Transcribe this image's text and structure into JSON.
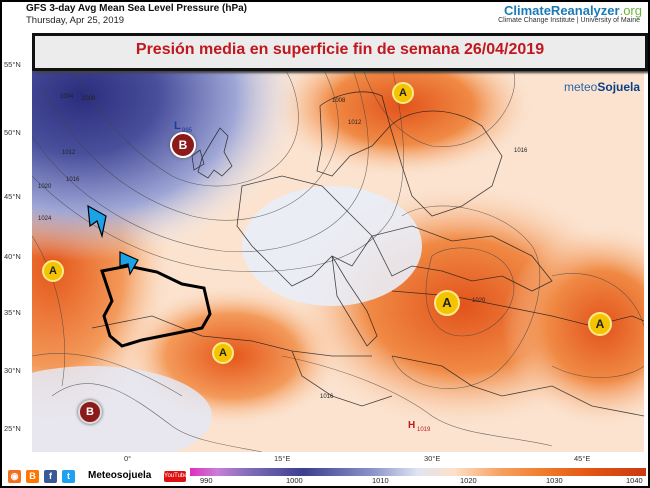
{
  "header": {
    "title": "GFS 3-day Avg Mean Sea Level Pressure (hPa)",
    "date": "Thursday, Apr 25, 2019",
    "brand_main": "ClimateReanalyzer",
    "brand_suffix": ".org",
    "brand_sub": "Climate Change Institute | University of Maine"
  },
  "banner": {
    "text": "Presión media en superficie fin de semana 26/04/2019"
  },
  "logo": {
    "prefix": "meteo",
    "suffix": "Sojuela"
  },
  "lat_labels": [
    "55°N",
    "50°N",
    "45°N",
    "40°N",
    "35°N",
    "30°N",
    "25°N"
  ],
  "lon_labels": [
    "0°",
    "15°E",
    "30°E",
    "45°E"
  ],
  "pressure_systems": [
    {
      "type": "L",
      "label": "L",
      "value": "995",
      "symbol": "B"
    },
    {
      "type": "H",
      "label": "H",
      "value": "1019"
    },
    {
      "type": "A",
      "label": "A"
    },
    {
      "type": "A",
      "label": "A"
    },
    {
      "type": "A",
      "label": "A"
    },
    {
      "type": "A",
      "label": "A"
    },
    {
      "type": "A",
      "label": "A"
    },
    {
      "type": "B",
      "label": "B"
    }
  ],
  "isobar_labels": [
    "1004",
    "1008",
    "1012",
    "1016",
    "1020",
    "1024",
    "1008",
    "1012",
    "1016",
    "1016",
    "1020"
  ],
  "footer": {
    "social_name": "Meteosojuela",
    "youtube": "YouTube"
  },
  "scale": {
    "ticks": [
      "990",
      "1000",
      "1010",
      "1020",
      "1030",
      "1040"
    ]
  },
  "colors": {
    "low": "#3b3f8e",
    "high": "#e2621a",
    "title_red": "#c0181e",
    "brand_blue": "#1a7ab8"
  }
}
